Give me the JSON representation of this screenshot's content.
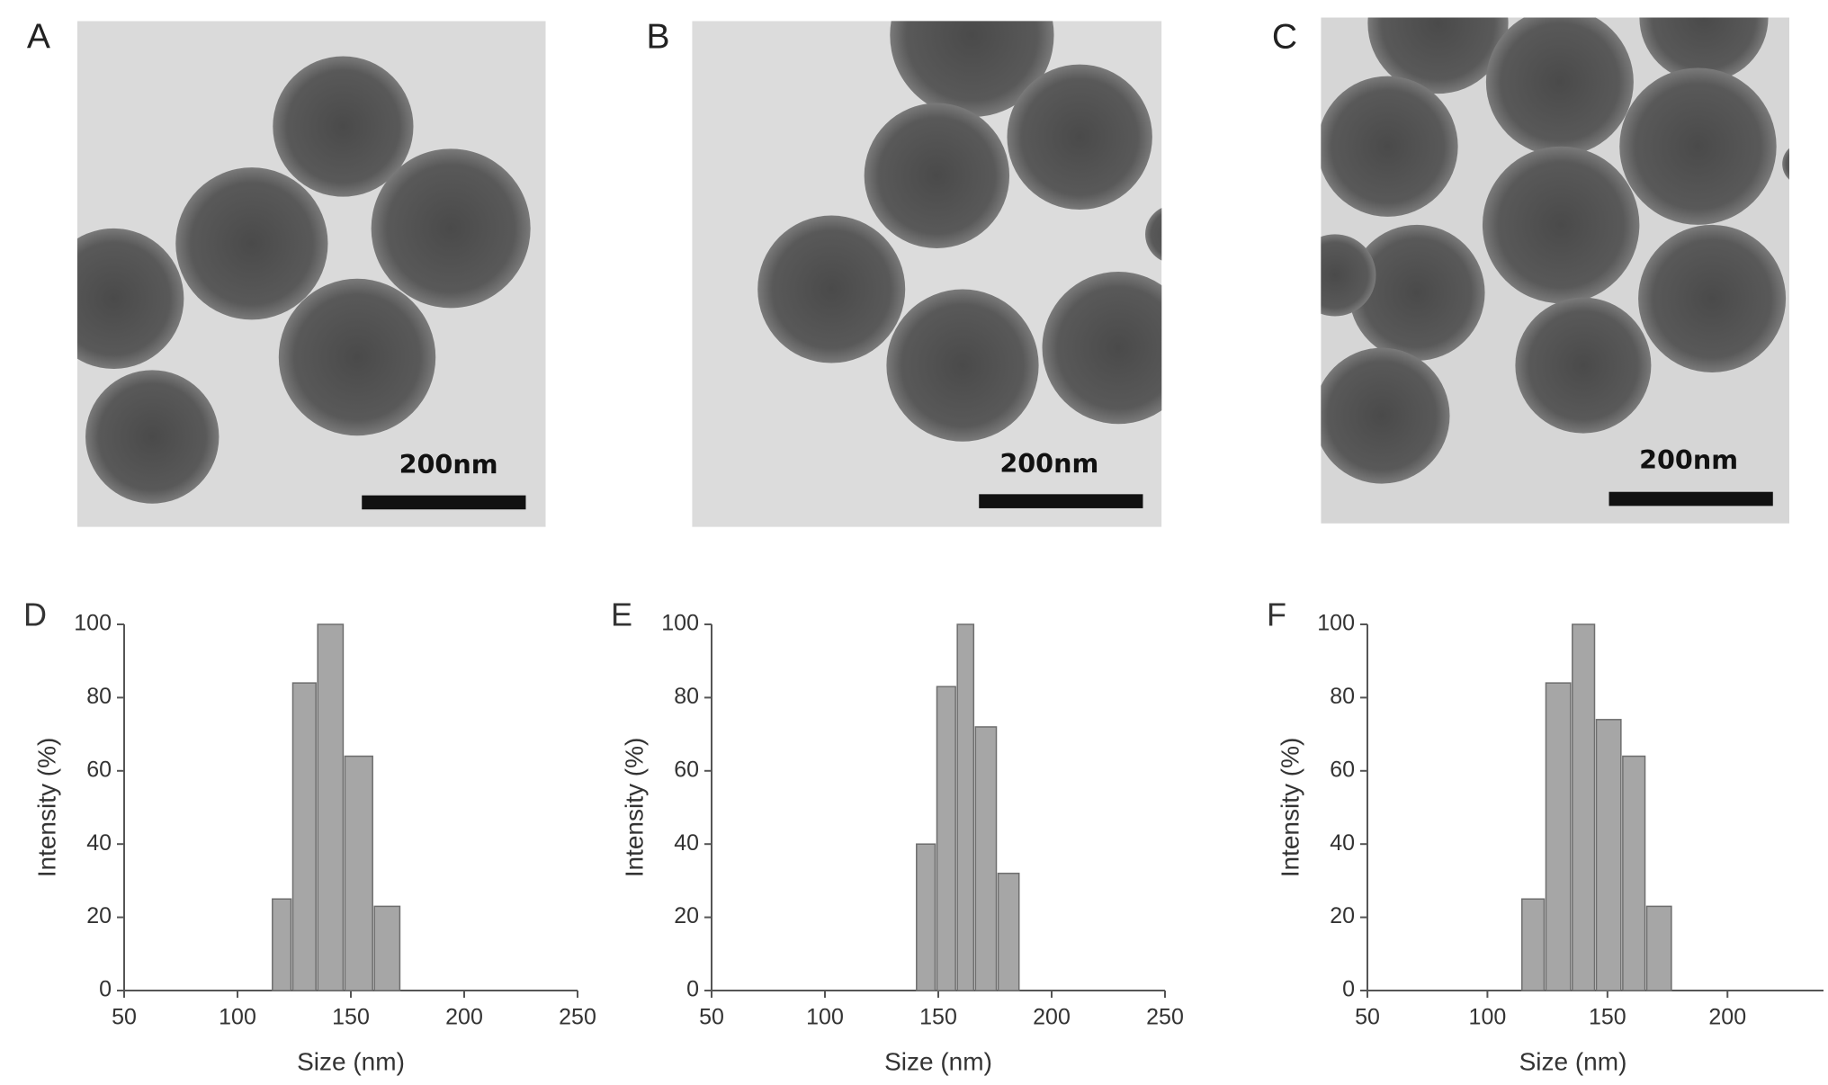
{
  "images": [
    {
      "label": "A",
      "scale_bar": "200nm"
    },
    {
      "label": "B",
      "scale_bar": "200nm"
    },
    {
      "label": "C",
      "scale_bar": "200nm"
    }
  ],
  "chart_data": [
    {
      "type": "histogram",
      "panel_label": "D",
      "x_label": "Size (nm)",
      "y_label": "Intensity (%)",
      "bins": [
        115,
        124,
        135,
        147,
        160,
        172
      ],
      "values": [
        25,
        84,
        100,
        64,
        23
      ],
      "color": "#a6a6a6",
      "xlim": [
        50,
        250
      ],
      "xticks": [
        50,
        100,
        150,
        200,
        250
      ],
      "ylim": [
        0,
        100
      ],
      "yticks": [
        0,
        20,
        40,
        60,
        80,
        100
      ],
      "grid": false
    },
    {
      "type": "histogram",
      "panel_label": "E",
      "x_label": "Size (nm)",
      "y_label": "Intensity (%)",
      "bins": [
        140,
        149,
        158,
        166,
        176,
        186
      ],
      "values": [
        40,
        83,
        100,
        72,
        32
      ],
      "color": "#a6a6a6",
      "xlim": [
        50,
        250
      ],
      "xticks": [
        50,
        100,
        150,
        200,
        250
      ],
      "ylim": [
        0,
        100
      ],
      "yticks": [
        0,
        20,
        40,
        60,
        80,
        100
      ],
      "grid": false
    },
    {
      "type": "histogram",
      "panel_label": "F",
      "x_label": "Size (nm)",
      "y_label": "Intensity (%)",
      "bins": [
        114,
        124,
        135,
        145,
        156,
        166,
        177
      ],
      "values": [
        25,
        84,
        100,
        74,
        64,
        23
      ],
      "color": "#a6a6a6",
      "xlim": [
        50,
        240
      ],
      "xticks": [
        50,
        100,
        150,
        200
      ],
      "ylim": [
        0,
        100
      ],
      "yticks": [
        0,
        20,
        40,
        60,
        80,
        100
      ],
      "grid": false
    }
  ]
}
